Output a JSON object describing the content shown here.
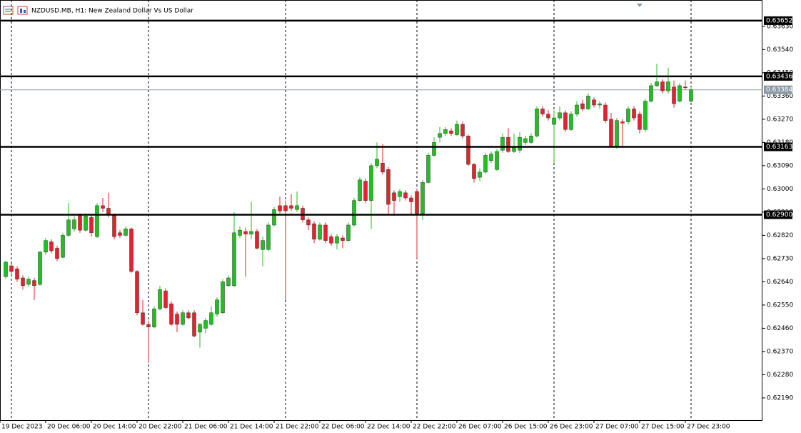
{
  "chart_data": {
    "type": "candlestick",
    "title": "NZDUSD.MB, H1:  New Zealand Dollar Vs US Dollar",
    "up_color": "#1ec21e",
    "down_color": "#e8202a",
    "x": [
      1,
      2,
      3,
      4,
      5,
      6,
      7,
      8,
      9,
      10,
      11,
      12,
      13,
      14,
      15,
      16,
      17,
      18,
      19,
      20,
      21,
      22,
      23,
      24,
      25,
      26,
      27,
      28,
      29,
      30,
      31,
      32,
      33,
      34,
      35,
      36,
      37,
      38,
      39,
      40,
      41,
      42,
      43,
      44,
      45,
      46,
      47,
      48,
      49,
      50,
      51,
      52,
      53,
      54,
      55,
      56,
      57,
      58,
      59,
      60,
      61,
      62,
      63,
      64,
      65,
      66,
      67,
      68,
      69,
      70,
      71,
      72,
      73,
      74,
      75,
      76,
      77,
      78,
      79,
      80,
      81,
      82,
      83,
      84,
      85,
      86,
      87,
      88,
      89,
      90,
      91,
      92,
      93,
      94,
      95,
      96,
      97,
      98,
      99,
      100,
      101,
      102,
      103,
      104,
      105,
      106,
      107,
      108,
      109,
      110,
      111,
      112,
      113,
      114,
      115,
      116,
      117,
      118,
      119,
      120,
      121
    ],
    "open": [
      0.6266,
      0.62702,
      0.6269,
      0.62655,
      0.6263,
      0.62645,
      0.6263,
      0.62755,
      0.62795,
      0.6277,
      0.62735,
      0.6282,
      0.62845,
      0.629,
      0.6284,
      0.6289,
      0.62815,
      0.62935,
      0.62925,
      0.629,
      0.6283,
      0.6282,
      0.62845,
      0.6268,
      0.6252,
      0.62475,
      0.62465,
      0.62535,
      0.62605,
      0.62555,
      0.62515,
      0.62475,
      0.6252,
      0.6252,
      0.62445,
      0.6246,
      0.62475,
      0.62515,
      0.6252,
      0.62625,
      0.62625,
      0.6282,
      0.62835,
      0.62825,
      0.62835,
      0.62765,
      0.62765,
      0.6286,
      0.62935,
      0.62935,
      0.62935,
      0.6292,
      0.62925,
      0.6288,
      0.62865,
      0.62805,
      0.6286,
      0.62815,
      0.6279,
      0.6281,
      0.628,
      0.6286,
      0.62955,
      0.6303,
      0.62955,
      0.6309,
      0.631,
      0.63075,
      0.62985,
      0.6297,
      0.62985,
      0.62965,
      0.6299,
      0.62905,
      0.63025,
      0.6313,
      0.632,
      0.63215,
      0.63225,
      0.6321,
      0.6325,
      0.63205,
      0.63095,
      0.63045,
      0.63065,
      0.6311,
      0.63075,
      0.6315,
      0.632,
      0.63145,
      0.6315,
      0.6318,
      0.6318,
      0.63205,
      0.6331,
      0.6329,
      0.6325,
      0.63275,
      0.63295,
      0.6323,
      0.6329,
      0.6333,
      0.6331,
      0.63345,
      0.63325,
      0.63325,
      0.6327,
      0.63165,
      0.6326,
      0.6326,
      0.6331,
      0.6329,
      0.6323,
      0.6334,
      0.634,
      0.63415,
      0.6338,
      0.63395,
      0.6334,
      0.63395,
      0.6334
    ],
    "high": [
      0.62722,
      0.6271,
      0.627,
      0.62665,
      0.6266,
      0.62655,
      0.6276,
      0.6281,
      0.62805,
      0.6278,
      0.6283,
      0.62945,
      0.62895,
      0.62905,
      0.62905,
      0.629,
      0.62945,
      0.62965,
      0.62985,
      0.62905,
      0.6284,
      0.62855,
      0.6285,
      0.62685,
      0.6257,
      0.6249,
      0.62545,
      0.62625,
      0.62615,
      0.62565,
      0.62525,
      0.6253,
      0.6253,
      0.6253,
      0.6248,
      0.625,
      0.62545,
      0.6258,
      0.6265,
      0.62665,
      0.6291,
      0.62855,
      0.6285,
      0.6295,
      0.62845,
      0.62815,
      0.6287,
      0.6293,
      0.6297,
      0.62955,
      0.6298,
      0.6299,
      0.62935,
      0.6289,
      0.62875,
      0.6287,
      0.6287,
      0.62825,
      0.62825,
      0.6282,
      0.6287,
      0.62965,
      0.63045,
      0.6304,
      0.631,
      0.6318,
      0.63175,
      0.63085,
      0.62995,
      0.63,
      0.62995,
      0.62975,
      0.63,
      0.63035,
      0.6314,
      0.632,
      0.6324,
      0.6324,
      0.63235,
      0.63265,
      0.6326,
      0.6321,
      0.631,
      0.6308,
      0.6314,
      0.63145,
      0.63155,
      0.63215,
      0.63235,
      0.63215,
      0.6322,
      0.63205,
      0.63215,
      0.6332,
      0.6332,
      0.63305,
      0.63305,
      0.6332,
      0.63305,
      0.633,
      0.6334,
      0.63345,
      0.6337,
      0.63355,
      0.6334,
      0.63335,
      0.63295,
      0.63275,
      0.6327,
      0.6332,
      0.6332,
      0.633,
      0.6335,
      0.6341,
      0.63485,
      0.63425,
      0.6347,
      0.6342,
      0.6341,
      0.6342,
      0.63395
    ],
    "low": [
      0.62652,
      0.6267,
      0.6264,
      0.6261,
      0.6262,
      0.6257,
      0.62625,
      0.62745,
      0.6275,
      0.6272,
      0.6273,
      0.62815,
      0.62835,
      0.6283,
      0.62835,
      0.62815,
      0.6281,
      0.6291,
      0.6289,
      0.62805,
      0.6281,
      0.62815,
      0.62675,
      0.6251,
      0.6247,
      0.62325,
      0.6246,
      0.6253,
      0.62535,
      0.6247,
      0.62445,
      0.6247,
      0.62495,
      0.62425,
      0.62385,
      0.6244,
      0.6247,
      0.62505,
      0.62515,
      0.6262,
      0.6262,
      0.6281,
      0.6266,
      0.62805,
      0.62765,
      0.627,
      0.6276,
      0.62855,
      0.62905,
      0.6257,
      0.62915,
      0.6291,
      0.6287,
      0.6284,
      0.6279,
      0.628,
      0.6279,
      0.6278,
      0.62765,
      0.6277,
      0.62795,
      0.62855,
      0.6295,
      0.62945,
      0.62845,
      0.6308,
      0.63055,
      0.629,
      0.62895,
      0.6295,
      0.62955,
      0.629,
      0.6273,
      0.6288,
      0.6302,
      0.63125,
      0.6318,
      0.63205,
      0.63205,
      0.63205,
      0.63195,
      0.6309,
      0.63025,
      0.6303,
      0.6306,
      0.631,
      0.6307,
      0.6314,
      0.6314,
      0.6314,
      0.6314,
      0.6317,
      0.63175,
      0.632,
      0.6328,
      0.63265,
      0.631,
      0.63265,
      0.6322,
      0.63225,
      0.6328,
      0.633,
      0.63305,
      0.63315,
      0.6331,
      0.63255,
      0.6316,
      0.63155,
      0.63165,
      0.6325,
      0.63265,
      0.63215,
      0.6322,
      0.63335,
      0.63395,
      0.6337,
      0.6337,
      0.63315,
      0.63335,
      0.63385,
      0.63335
    ],
    "close": [
      0.62716,
      0.6268,
      0.6265,
      0.62625,
      0.6265,
      0.62625,
      0.62755,
      0.628,
      0.6276,
      0.6273,
      0.6282,
      0.6288,
      0.6288,
      0.6284,
      0.62895,
      0.6283,
      0.62935,
      0.62925,
      0.629,
      0.62815,
      0.6282,
      0.62845,
      0.6268,
      0.6252,
      0.62475,
      0.62465,
      0.62535,
      0.6261,
      0.6254,
      0.62475,
      0.62475,
      0.6252,
      0.625,
      0.6243,
      0.62475,
      0.6249,
      0.6252,
      0.6257,
      0.6264,
      0.62655,
      0.6283,
      0.6284,
      0.62825,
      0.62835,
      0.6277,
      0.628,
      0.6286,
      0.6292,
      0.62915,
      0.62915,
      0.62925,
      0.62935,
      0.6288,
      0.6286,
      0.62805,
      0.6286,
      0.628,
      0.6279,
      0.62815,
      0.628,
      0.6286,
      0.62955,
      0.63035,
      0.62955,
      0.6309,
      0.63115,
      0.63065,
      0.6294,
      0.62955,
      0.6299,
      0.62965,
      0.6295,
      0.62905,
      0.63025,
      0.6313,
      0.6318,
      0.63215,
      0.6323,
      0.63215,
      0.6325,
      0.63205,
      0.63095,
      0.6304,
      0.63065,
      0.6313,
      0.63135,
      0.63145,
      0.632,
      0.63145,
      0.63165,
      0.632,
      0.63195,
      0.63205,
      0.6331,
      0.6329,
      0.63275,
      0.63275,
      0.63295,
      0.6323,
      0.6329,
      0.63325,
      0.6331,
      0.6336,
      0.63325,
      0.6333,
      0.63265,
      0.63165,
      0.63265,
      0.63255,
      0.6331,
      0.63275,
      0.6323,
      0.6334,
      0.634,
      0.63415,
      0.6338,
      0.63415,
      0.6333,
      0.634,
      0.63392,
      0.63384
    ],
    "xlim": [
      0,
      133.5
    ],
    "xticks": [
      {
        "value": 0,
        "label": "19 Dec 2023"
      },
      {
        "value": 8,
        "label": "20 Dec 06:00"
      },
      {
        "value": 16,
        "label": "20 Dec 14:00"
      },
      {
        "value": 24,
        "label": "20 Dec 22:00"
      },
      {
        "value": 32,
        "label": "21 Dec 06:00"
      },
      {
        "value": 40,
        "label": "21 Dec 14:00"
      },
      {
        "value": 48,
        "label": "21 Dec 22:00"
      },
      {
        "value": 56,
        "label": "22 Dec 06:00"
      },
      {
        "value": 64,
        "label": "22 Dec 14:00"
      },
      {
        "value": 72,
        "label": "22 Dec 22:00"
      },
      {
        "value": 80,
        "label": "26 Dec 07:00"
      },
      {
        "value": 88,
        "label": "26 Dec 15:00"
      },
      {
        "value": 96,
        "label": "26 Dec 23:00"
      },
      {
        "value": 104,
        "label": "27 Dec 07:00"
      },
      {
        "value": 112,
        "label": "27 Dec 15:00"
      },
      {
        "value": 120,
        "label": "27 Dec 23:00"
      }
    ],
    "period_separators": [
      2,
      26,
      50,
      73,
      97,
      121
    ],
    "ylim": [
      0.62104,
      0.63732
    ],
    "yticks": [
      {
        "value": 0.6219,
        "label": "0.62190"
      },
      {
        "value": 0.6228,
        "label": "0.62280"
      },
      {
        "value": 0.6237,
        "label": "0.62370"
      },
      {
        "value": 0.6246,
        "label": "0.62460"
      },
      {
        "value": 0.6255,
        "label": "0.62550"
      },
      {
        "value": 0.6264,
        "label": "0.62640"
      },
      {
        "value": 0.6273,
        "label": "0.62730"
      },
      {
        "value": 0.6282,
        "label": "0.62820"
      },
      {
        "value": 0.6291,
        "label": "0.62910"
      },
      {
        "value": 0.63,
        "label": "0.63000"
      },
      {
        "value": 0.6309,
        "label": "0.63090"
      },
      {
        "value": 0.6318,
        "label": "0.63180"
      },
      {
        "value": 0.6327,
        "label": "0.63270"
      },
      {
        "value": 0.6336,
        "label": "0.63360"
      },
      {
        "value": 0.6345,
        "label": "0.63450"
      },
      {
        "value": 0.6354,
        "label": "0.63540"
      },
      {
        "value": 0.6363,
        "label": "0.63630"
      }
    ],
    "levels": [
      {
        "value": 0.63652,
        "label": "0.63652"
      },
      {
        "value": 0.63436,
        "label": "0.63436"
      },
      {
        "value": 0.63163,
        "label": "0.63163"
      },
      {
        "value": 0.629,
        "label": "0.62900"
      }
    ],
    "level_color": "#000000",
    "current_price": {
      "value": 0.63384,
      "label": "0.63384"
    },
    "current_price_color": "#8c9ba6"
  }
}
